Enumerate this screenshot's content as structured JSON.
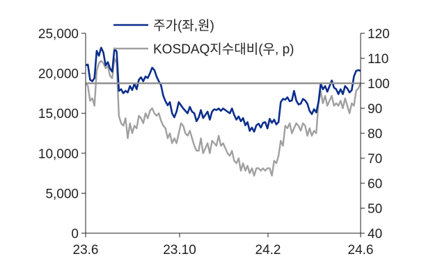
{
  "chart_data": {
    "type": "line",
    "x_ticks": [
      "23.6",
      "23.10",
      "24.2",
      "24.6"
    ],
    "y_left": {
      "ticks": [
        "0",
        "5,000",
        "10,000",
        "15,000",
        "20,000",
        "25,000"
      ],
      "range": [
        0,
        25000
      ]
    },
    "y_right": {
      "ticks": [
        "40",
        "50",
        "60",
        "70",
        "80",
        "90",
        "100",
        "110",
        "120"
      ],
      "range": [
        40,
        120
      ]
    },
    "reference_line": {
      "axis": "right",
      "value": 100,
      "color": "#909090"
    },
    "legend": {
      "position": "top-center"
    },
    "series": [
      {
        "name": "주가(좌,원)",
        "axis": "left",
        "color": "#0a2d8c",
        "values": [
          21000,
          21100,
          19200,
          19000,
          19400,
          22800,
          22200,
          23200,
          22600,
          21000,
          21400,
          20600,
          20200,
          23100,
          22700,
          17800,
          18000,
          17500,
          17800,
          17600,
          18400,
          17900,
          18700,
          18000,
          19200,
          19500,
          19000,
          19600,
          19400,
          20000,
          20700,
          20400,
          19600,
          19000,
          18500,
          17200,
          16500,
          16000,
          16400,
          15000,
          14500,
          15200,
          16400,
          16000,
          15600,
          15300,
          15000,
          15800,
          15200,
          15000,
          14000,
          14500,
          15400,
          14400,
          14800,
          15200,
          14200,
          15200,
          15500,
          15400,
          15600,
          15300,
          15600,
          15400,
          15200,
          15000,
          15600,
          14800,
          14200,
          14600,
          14000,
          14400,
          13500,
          13900,
          12800,
          13200,
          12700,
          13500,
          13700,
          13200,
          13800,
          13900,
          13100,
          14300,
          13800,
          14200,
          13600,
          13900,
          16400,
          16800,
          16700,
          17000,
          16500,
          16600,
          17800,
          16600,
          16100,
          16200,
          16800,
          16600,
          16200,
          15300,
          14900,
          15500,
          15100,
          16400,
          18700,
          18000,
          18400,
          17700,
          18400,
          19100,
          18200,
          18000,
          17400,
          18000,
          17400,
          18400,
          18100,
          17600,
          17900,
          19600,
          20300,
          20400,
          20300
        ]
      },
      {
        "name": "KOSDAQ지수대비(우, p)",
        "axis": "right",
        "color": "#a0a0a0",
        "values": [
          100,
          99,
          93,
          94,
          91,
          105,
          108,
          109,
          108,
          106,
          107,
          103,
          102,
          110,
          108,
          87,
          84,
          83,
          86,
          78,
          84,
          80,
          83,
          82,
          87,
          86,
          84,
          88,
          86,
          89,
          90,
          88,
          87,
          88,
          85,
          83,
          82,
          78,
          80,
          76,
          78,
          76,
          80,
          84,
          83,
          80,
          79,
          81,
          78,
          75,
          73,
          73,
          78,
          72,
          74,
          76,
          72,
          77,
          76,
          75,
          79,
          75,
          76,
          74,
          72,
          71,
          73,
          69,
          68,
          70,
          65,
          68,
          65,
          67,
          64,
          66,
          63,
          66,
          66,
          65,
          66,
          65,
          66,
          66,
          63,
          69,
          68,
          71,
          77,
          75,
          83,
          82,
          84,
          80,
          82,
          84,
          83,
          81,
          84,
          83,
          79,
          82,
          79,
          81,
          80,
          92,
          97,
          92,
          95,
          91,
          93,
          95,
          91,
          92,
          91,
          93,
          90,
          94,
          91,
          88,
          92,
          91,
          97,
          98,
          100
        ]
      }
    ]
  }
}
